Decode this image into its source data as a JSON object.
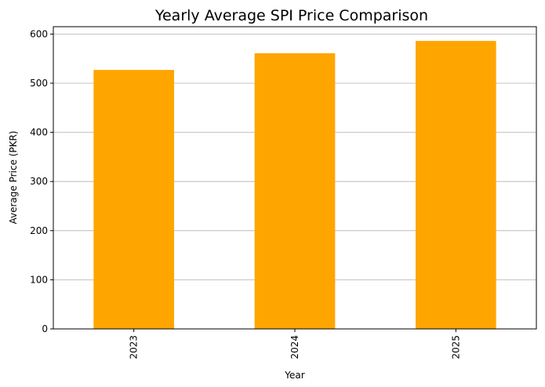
{
  "chart_data": {
    "type": "bar",
    "title": "Yearly Average SPI Price Comparison",
    "xlabel": "Year",
    "ylabel": "Average Price (PKR)",
    "categories": [
      "2023",
      "2024",
      "2025"
    ],
    "values": [
      527,
      561,
      586
    ],
    "ylim": [
      0,
      615
    ],
    "yticks": [
      0,
      100,
      200,
      300,
      400,
      500,
      600
    ],
    "grid": "y-axis horizontal lines",
    "bar_color": "#ffa500",
    "grid_color": "#b0b0b0"
  }
}
